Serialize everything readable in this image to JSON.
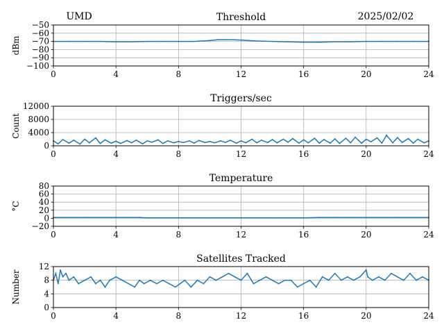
{
  "header": {
    "station": "UMD",
    "date": "2025/02/02"
  },
  "chart_data": [
    {
      "type": "line",
      "title": "Threshold",
      "xlabel": "",
      "ylabel": "dBm",
      "xlim": [
        0,
        24
      ],
      "ylim": [
        -100,
        -50
      ],
      "xticks": [
        0,
        4,
        8,
        12,
        16,
        20,
        24
      ],
      "yticks": [
        -100,
        -90,
        -80,
        -70,
        -60,
        -50
      ],
      "grid": true,
      "color": "#1f77b4",
      "series": [
        {
          "x": [
            0,
            1,
            2,
            3,
            4,
            5,
            6,
            7,
            8,
            9,
            10,
            10.5,
            11,
            11.5,
            12,
            12.5,
            13,
            14,
            15,
            16,
            17,
            18,
            19,
            20,
            21,
            22,
            23,
            24
          ],
          "y": [
            -70,
            -70,
            -70,
            -70,
            -70.5,
            -70.5,
            -70,
            -70,
            -70,
            -70,
            -69,
            -68,
            -68,
            -68,
            -68.5,
            -69,
            -69.5,
            -70,
            -70.5,
            -71,
            -71,
            -70.5,
            -70.5,
            -70,
            -70,
            -70,
            -70,
            -70
          ]
        }
      ]
    },
    {
      "type": "line",
      "title": "Triggers/sec",
      "xlabel": "",
      "ylabel": "Count",
      "xlim": [
        0,
        24
      ],
      "ylim": [
        0,
        12000
      ],
      "xticks": [
        0,
        4,
        8,
        12,
        16,
        20,
        24
      ],
      "yticks": [
        0,
        4000,
        8000,
        12000
      ],
      "grid": true,
      "color": "#1f77b4",
      "series": [
        {
          "x": [
            0,
            0.3,
            0.6,
            1,
            1.3,
            1.7,
            2,
            2.3,
            2.7,
            3,
            3.3,
            3.7,
            4,
            4.3,
            4.7,
            5,
            5.3,
            5.7,
            6,
            6.3,
            6.7,
            7,
            7.3,
            7.7,
            8,
            8.3,
            8.7,
            9,
            9.3,
            9.7,
            10,
            10.3,
            10.7,
            11,
            11.3,
            11.7,
            12,
            12.3,
            12.7,
            13,
            13.3,
            13.7,
            14,
            14.3,
            14.7,
            15,
            15.3,
            15.7,
            16,
            16.3,
            16.7,
            17,
            17.3,
            17.7,
            18,
            18.3,
            18.7,
            19,
            19.3,
            19.7,
            20,
            20.3,
            20.7,
            21,
            21.3,
            21.7,
            22,
            22.3,
            22.7,
            23,
            23.3,
            23.7,
            24
          ],
          "y": [
            1500,
            600,
            1900,
            800,
            1700,
            500,
            2000,
            900,
            2400,
            700,
            1800,
            800,
            1400,
            700,
            1600,
            900,
            1700,
            600,
            1500,
            1100,
            1800,
            700,
            1500,
            900,
            1300,
            1000,
            1500,
            800,
            1600,
            1000,
            1300,
            900,
            1500,
            1000,
            1700,
            800,
            1500,
            900,
            2000,
            900,
            1700,
            1000,
            1900,
            900,
            2000,
            1100,
            2200,
            800,
            1800,
            900,
            2300,
            800,
            1900,
            800,
            2100,
            700,
            2300,
            900,
            2600,
            800,
            2000,
            1200,
            2400,
            800,
            3200,
            900,
            2500,
            1000,
            2200,
            800,
            2000,
            900,
            1500
          ]
        }
      ]
    },
    {
      "type": "line",
      "title": "Temperature",
      "xlabel": "",
      "ylabel": "°C",
      "xlim": [
        0,
        24
      ],
      "ylim": [
        -20,
        80
      ],
      "xticks": [
        0,
        4,
        8,
        12,
        16,
        20,
        24
      ],
      "yticks": [
        -20,
        0,
        20,
        40,
        60,
        80
      ],
      "grid": true,
      "color": "#1f77b4",
      "series": [
        {
          "x": [
            0,
            2,
            4,
            5.5,
            6,
            8,
            10,
            12,
            14,
            16,
            17,
            18,
            20,
            22,
            24
          ],
          "y": [
            2,
            2,
            2,
            2,
            1,
            1,
            1,
            1,
            1,
            1,
            2,
            2,
            2,
            2,
            2
          ]
        }
      ]
    },
    {
      "type": "line",
      "title": "Satellites Tracked",
      "xlabel": "",
      "ylabel": "Number",
      "xlim": [
        0,
        24
      ],
      "ylim": [
        0,
        12
      ],
      "xticks": [
        0,
        4,
        8,
        12,
        16,
        20,
        24
      ],
      "yticks": [
        0,
        4,
        8,
        12
      ],
      "grid": true,
      "color": "#1f77b4",
      "series": [
        {
          "x": [
            0,
            0.15,
            0.3,
            0.45,
            0.6,
            0.8,
            1.0,
            1.3,
            1.6,
            2.0,
            2.4,
            2.7,
            3.0,
            3.3,
            3.6,
            4.0,
            4.4,
            4.8,
            5.2,
            5.5,
            5.8,
            6.2,
            6.6,
            7.0,
            7.4,
            7.8,
            8.1,
            8.4,
            8.8,
            9.2,
            9.6,
            10.0,
            10.4,
            10.8,
            11.2,
            11.6,
            12.0,
            12.4,
            12.8,
            13.2,
            13.6,
            14.0,
            14.4,
            14.8,
            15.2,
            15.6,
            16.0,
            16.4,
            16.8,
            17.2,
            17.6,
            18.0,
            18.4,
            18.8,
            19.2,
            19.6,
            20.0,
            20.1,
            20.4,
            20.8,
            21.2,
            21.6,
            22.0,
            22.4,
            22.8,
            23.2,
            23.6,
            24
          ],
          "y": [
            8,
            10,
            7,
            11,
            9,
            10,
            8,
            9,
            7,
            8,
            9,
            7,
            8,
            6,
            8,
            9,
            8,
            7,
            6,
            8,
            7,
            8,
            7,
            8,
            7,
            6,
            7,
            8,
            6,
            8,
            7,
            9,
            8,
            9,
            10,
            9,
            8,
            10,
            7,
            8,
            9,
            8,
            7,
            8,
            8,
            6,
            7,
            8,
            6,
            9,
            8,
            10,
            8,
            9,
            8,
            9,
            11,
            9,
            8,
            9,
            8,
            10,
            9,
            8,
            10,
            8,
            9,
            8
          ]
        }
      ]
    }
  ]
}
